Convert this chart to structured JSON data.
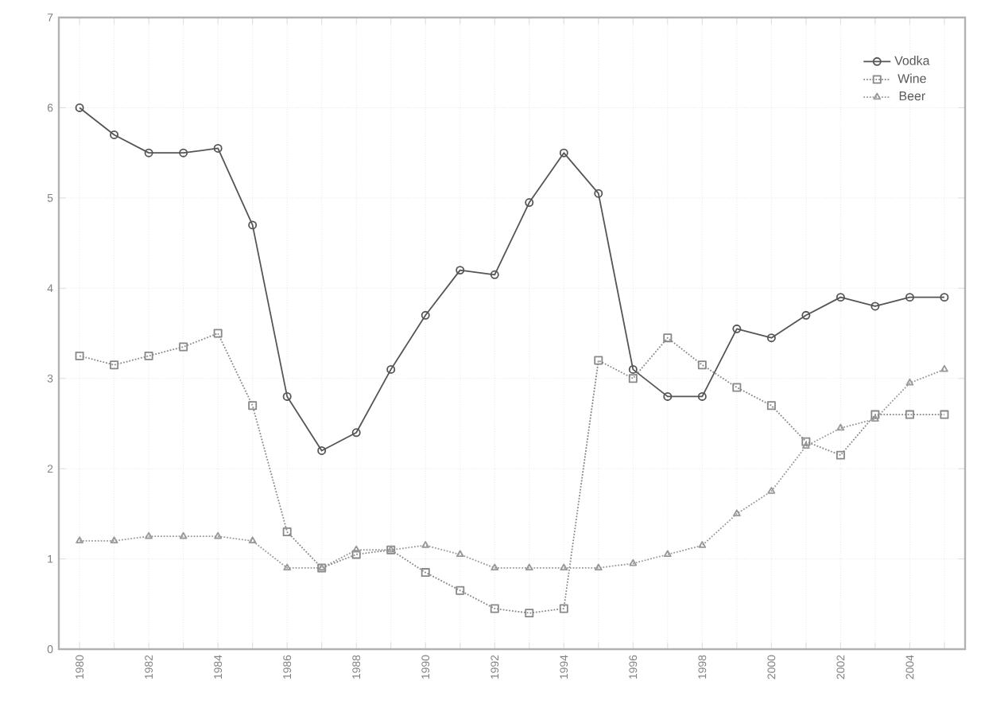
{
  "chart_data": {
    "type": "line",
    "x": [
      1980,
      1981,
      1982,
      1983,
      1984,
      1985,
      1986,
      1987,
      1988,
      1989,
      1990,
      1991,
      1992,
      1993,
      1994,
      1995,
      1996,
      1997,
      1998,
      1999,
      2000,
      2001,
      2002,
      2003,
      2004,
      2005
    ],
    "series": [
      {
        "name": "Vodka",
        "color": "#555555",
        "marker": "circle",
        "line_style": "solid",
        "values": [
          6.0,
          5.7,
          5.5,
          5.5,
          5.55,
          4.7,
          2.8,
          2.2,
          2.4,
          3.1,
          3.7,
          4.2,
          4.15,
          4.95,
          5.5,
          5.05,
          3.1,
          2.8,
          2.8,
          3.55,
          3.45,
          3.7,
          3.9,
          3.8,
          3.9,
          3.9
        ]
      },
      {
        "name": "Wine",
        "color": "#888888",
        "marker": "square",
        "line_style": "dotted",
        "values": [
          3.25,
          3.15,
          3.25,
          3.35,
          3.5,
          2.7,
          1.3,
          0.9,
          1.05,
          1.1,
          0.85,
          0.65,
          0.45,
          0.4,
          0.45,
          3.2,
          3.0,
          3.45,
          3.15,
          2.9,
          2.7,
          2.3,
          2.15,
          2.6,
          2.6,
          2.6
        ]
      },
      {
        "name": "Beer",
        "color": "#999999",
        "marker": "triangle",
        "line_style": "dotted",
        "values": [
          1.2,
          1.2,
          1.25,
          1.25,
          1.25,
          1.2,
          0.9,
          0.9,
          1.1,
          1.1,
          1.15,
          1.05,
          0.9,
          0.9,
          0.9,
          0.9,
          0.95,
          1.05,
          1.15,
          1.5,
          1.75,
          2.25,
          2.45,
          2.55,
          2.95,
          3.1
        ]
      }
    ],
    "xlim": [
      1979.4,
      2005.6
    ],
    "xticks": [
      1980,
      {
        "value": 1981,
        "label": null
      },
      1982,
      {
        "value": 1983,
        "label": null
      },
      1984,
      {
        "value": 1985,
        "label": null
      },
      1986,
      {
        "value": 1987,
        "label": null
      },
      1988,
      {
        "value": 1989,
        "label": null
      },
      1990,
      {
        "value": 1991,
        "label": null
      },
      1992,
      {
        "value": 1993,
        "label": null
      },
      1994,
      {
        "value": 1995,
        "label": null
      },
      1996,
      {
        "value": 1997,
        "label": null
      },
      1998,
      {
        "value": 1999,
        "label": null
      },
      2000,
      {
        "value": 2001,
        "label": null
      },
      2002,
      {
        "value": 2003,
        "label": null
      },
      2004,
      {
        "value": 2005,
        "label": null
      }
    ],
    "ylim": [
      0,
      7
    ],
    "yticks": [
      0,
      1,
      2,
      3,
      4,
      5,
      6,
      7
    ],
    "grid": true,
    "legend": "top right"
  }
}
